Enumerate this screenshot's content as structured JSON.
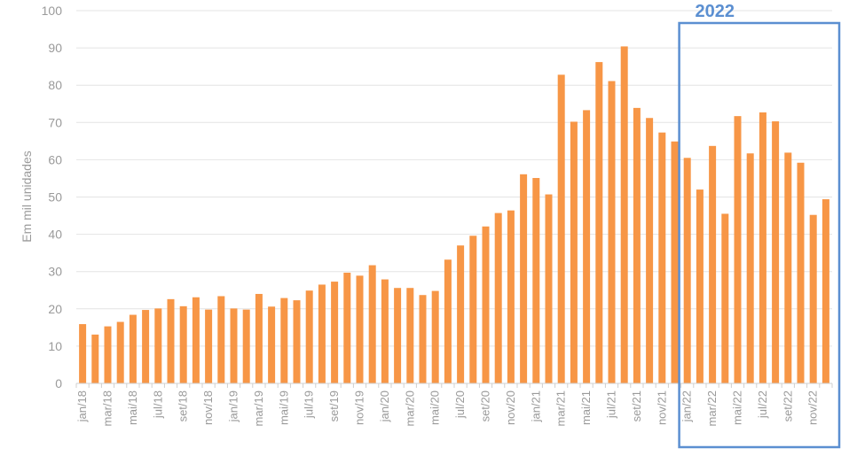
{
  "chart_data": {
    "type": "bar",
    "ylabel": "Em mil unidades",
    "xlabel": "",
    "title": "",
    "ylim": [
      0,
      100
    ],
    "yticks": [
      0,
      10,
      20,
      30,
      40,
      50,
      60,
      70,
      80,
      90,
      100
    ],
    "grid": true,
    "bar_color": "#f79646",
    "highlight_color": "#5b8fd1",
    "categories": [
      "jan/18",
      "fev/18",
      "mar/18",
      "abr/18",
      "mai/18",
      "jun/18",
      "jul/18",
      "ago/18",
      "set/18",
      "out/18",
      "nov/18",
      "dez/18",
      "jan/19",
      "fev/19",
      "mar/19",
      "abr/19",
      "mai/19",
      "jun/19",
      "jul/19",
      "ago/19",
      "set/19",
      "out/19",
      "nov/19",
      "dez/19",
      "jan/20",
      "fev/20",
      "mar/20",
      "abr/20",
      "mai/20",
      "jun/20",
      "jul/20",
      "ago/20",
      "set/20",
      "out/20",
      "nov/20",
      "dez/20",
      "jan/21",
      "fev/21",
      "mar/21",
      "abr/21",
      "mai/21",
      "jun/21",
      "jul/21",
      "ago/21",
      "set/21",
      "out/21",
      "nov/21",
      "dez/21",
      "jan/22",
      "fev/22",
      "mar/22",
      "abr/22",
      "mai/22",
      "jun/22",
      "jul/22",
      "ago/22",
      "set/22",
      "out/22",
      "nov/22",
      "dez/22"
    ],
    "tick_labels_shown": [
      "jan/18",
      "mar/18",
      "mai/18",
      "jul/18",
      "set/18",
      "nov/18",
      "jan/19",
      "mar/19",
      "mai/19",
      "jul/19",
      "set/19",
      "nov/19",
      "jan/20",
      "mar/20",
      "mai/20",
      "jul/20",
      "set/20",
      "nov/20",
      "jan/21",
      "mar/21",
      "mai/21",
      "jul/21",
      "set/21",
      "nov/21",
      "jan/22",
      "mar/22",
      "mai/22",
      "jul/22",
      "set/22",
      "nov/22"
    ],
    "values": [
      15.9,
      13.1,
      15.3,
      16.5,
      18.4,
      19.7,
      20.1,
      22.6,
      20.7,
      23.1,
      19.8,
      23.4,
      20.1,
      19.8,
      24.0,
      20.6,
      22.9,
      22.3,
      24.9,
      26.5,
      27.3,
      29.7,
      28.9,
      31.7,
      27.9,
      25.6,
      25.6,
      23.7,
      24.8,
      33.2,
      37.0,
      39.6,
      42.1,
      45.7,
      46.4,
      56.1,
      55.1,
      50.7,
      82.8,
      70.2,
      73.3,
      86.2,
      81.1,
      90.4,
      73.9,
      71.2,
      67.3,
      64.9,
      60.5,
      52.0,
      63.7,
      45.5,
      71.7,
      61.7,
      72.7,
      70.3,
      61.9,
      59.2,
      45.2,
      49.4
    ],
    "annotations": [
      {
        "label": "2022",
        "span": [
          "jan/22",
          "dez/22"
        ]
      }
    ]
  }
}
